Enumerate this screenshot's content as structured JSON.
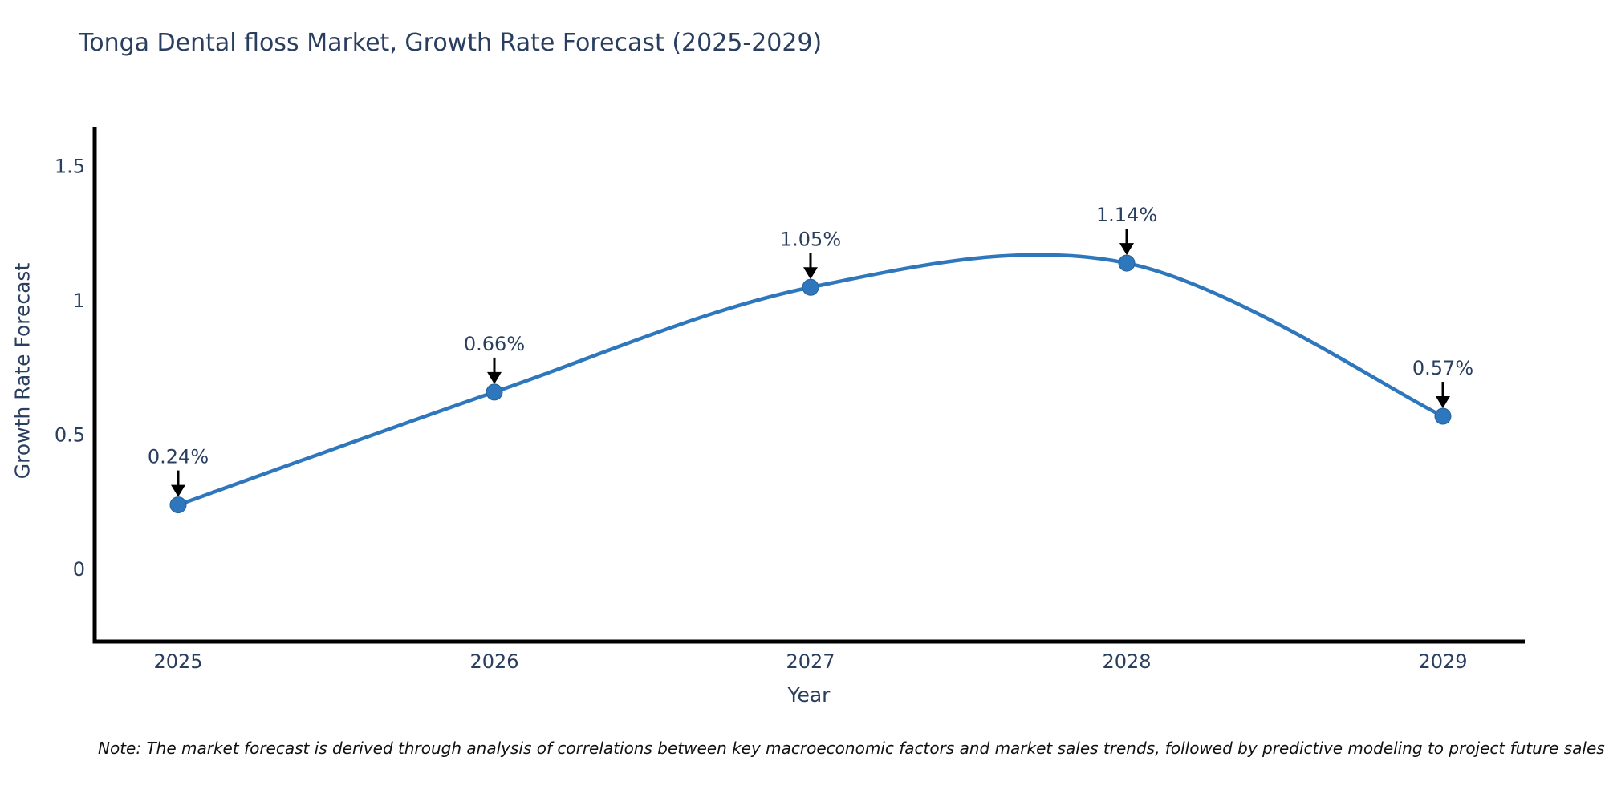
{
  "chart_data": {
    "type": "line",
    "title": "Tonga Dental floss Market, Growth Rate Forecast (2025-2029)",
    "xlabel": "Year",
    "ylabel": "Growth Rate Forecast",
    "x": [
      2025,
      2026,
      2027,
      2028,
      2029
    ],
    "categories": [
      "2025",
      "2026",
      "2027",
      "2028",
      "2029"
    ],
    "values": [
      0.24,
      0.66,
      1.05,
      1.14,
      0.57
    ],
    "point_labels": [
      "0.24%",
      "0.66%",
      "1.05%",
      "1.14%",
      "0.57%"
    ],
    "x_tick_labels": [
      "2025",
      "2026",
      "2027",
      "2028",
      "2029"
    ],
    "y_ticks": [
      0,
      0.5,
      1,
      1.5
    ],
    "y_tick_labels": [
      "0",
      "0.5",
      "1",
      "1.5"
    ],
    "ylim": [
      -0.27,
      1.64
    ],
    "xlim": [
      2024.74,
      2029.26
    ],
    "line_shape": "spline",
    "grid": false,
    "legend": false,
    "markers": true,
    "annotations_have_arrows": true,
    "colors": {
      "line": "#2e77bc",
      "marker": "#2e77bc",
      "marker_edge": "#25619b",
      "arrow": "#000000",
      "title_text": "#2a3f5f",
      "axis_text": "#2a3f5f",
      "annotation_text": "#2a3f5f",
      "axis_line": "#000000",
      "background": "#ffffff"
    }
  },
  "note": {
    "text": "Note: The market forecast is derived through analysis of correlations between key macroeconomic factors and market sales trends, followed by predictive modeling to project future sales"
  }
}
